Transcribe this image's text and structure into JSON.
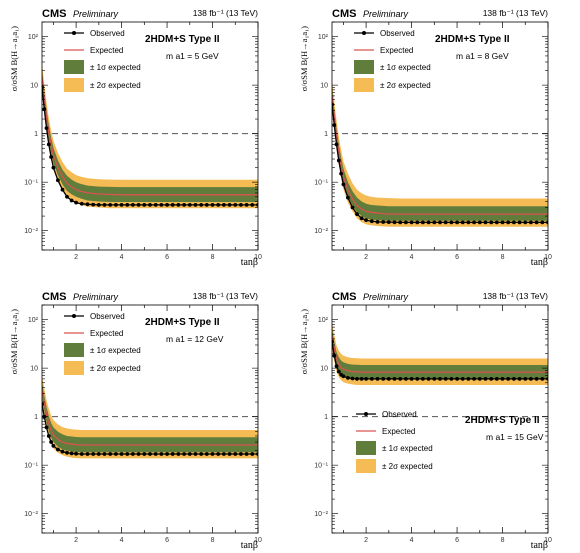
{
  "shared": {
    "cms_label": "CMS",
    "preliminary_label": "Preliminary",
    "lumi_label": "138 fb⁻¹ (13 TeV)",
    "model_label": "2HDM+S Type II",
    "x_label": "tanβ",
    "y_label": "σ/σSM B(H→a₁a₁)",
    "legend": {
      "observed": "Observed",
      "expected": "Expected",
      "one_sigma": "± 1σ expected",
      "two_sigma": "± 2σ expected"
    },
    "x_ticks": [
      "2",
      "4",
      "6",
      "8",
      "10"
    ],
    "y_ticks": [
      "10⁻²",
      "10⁻¹",
      "1",
      "10",
      "10²"
    ],
    "colors": {
      "one_sigma_band": "#607d3b",
      "two_sigma_band": "#f5bb54",
      "expected_line": "#d9534f",
      "observed": "#000000",
      "reference_line": "#555555"
    }
  },
  "chart_data": [
    {
      "type": "line",
      "mass_label": "m a1 = 5 GeV",
      "x": [
        0.5,
        0.6,
        0.7,
        0.8,
        0.9,
        1.0,
        1.2,
        1.4,
        1.6,
        1.8,
        2.0,
        2.2,
        2.5,
        3,
        3.5,
        4,
        5,
        6,
        7,
        8,
        9,
        10
      ],
      "observed": [
        9,
        3.2,
        1.3,
        0.6,
        0.33,
        0.2,
        0.11,
        0.07,
        0.05,
        0.042,
        0.038,
        0.036,
        0.035,
        0.034,
        0.034,
        0.034,
        0.034,
        0.034,
        0.034,
        0.034,
        0.034,
        0.034
      ],
      "expected": [
        14,
        5.2,
        2.2,
        1.05,
        0.58,
        0.36,
        0.2,
        0.13,
        0.095,
        0.08,
        0.07,
        0.065,
        0.06,
        0.057,
        0.056,
        0.055,
        0.055,
        0.055,
        0.055,
        0.055,
        0.055,
        0.055
      ],
      "one_sigma_low": [
        10,
        3.7,
        1.55,
        0.74,
        0.41,
        0.25,
        0.14,
        0.09,
        0.066,
        0.056,
        0.05,
        0.046,
        0.042,
        0.04,
        0.039,
        0.039,
        0.039,
        0.039,
        0.039,
        0.039,
        0.039,
        0.039
      ],
      "one_sigma_high": [
        20,
        7.4,
        3.1,
        1.5,
        0.83,
        0.51,
        0.28,
        0.18,
        0.135,
        0.113,
        0.1,
        0.092,
        0.085,
        0.081,
        0.08,
        0.079,
        0.079,
        0.079,
        0.079,
        0.079,
        0.079,
        0.079
      ],
      "two_sigma_low": [
        7.5,
        2.8,
        1.15,
        0.55,
        0.3,
        0.18,
        0.1,
        0.066,
        0.048,
        0.041,
        0.037,
        0.034,
        0.031,
        0.03,
        0.029,
        0.029,
        0.029,
        0.029,
        0.029,
        0.029,
        0.029,
        0.029
      ],
      "two_sigma_high": [
        28,
        10.5,
        4.4,
        2.1,
        1.17,
        0.72,
        0.4,
        0.26,
        0.19,
        0.16,
        0.14,
        0.13,
        0.12,
        0.115,
        0.113,
        0.112,
        0.112,
        0.112,
        0.112,
        0.112,
        0.112,
        0.112
      ],
      "xlim": [
        0.5,
        10
      ],
      "ylim": [
        0.004,
        200
      ],
      "ylog": true,
      "reference_line_y": 1,
      "legend_position": "top-left"
    },
    {
      "type": "line",
      "mass_label": "m a1 = 8 GeV",
      "x": [
        0.5,
        0.6,
        0.7,
        0.8,
        0.9,
        1.0,
        1.2,
        1.4,
        1.6,
        1.8,
        2.0,
        2.2,
        2.5,
        3,
        3.5,
        4,
        5,
        6,
        7,
        8,
        9,
        10
      ],
      "observed": [
        4,
        1.5,
        0.6,
        0.28,
        0.15,
        0.09,
        0.048,
        0.03,
        0.022,
        0.018,
        0.0165,
        0.0158,
        0.0152,
        0.015,
        0.0148,
        0.0148,
        0.0148,
        0.0148,
        0.0148,
        0.0148,
        0.0148,
        0.0148
      ],
      "expected": [
        6,
        2.2,
        0.9,
        0.42,
        0.22,
        0.13,
        0.07,
        0.045,
        0.033,
        0.028,
        0.025,
        0.024,
        0.023,
        0.022,
        0.022,
        0.022,
        0.022,
        0.022,
        0.022,
        0.022,
        0.022,
        0.022
      ],
      "one_sigma_low": [
        4.4,
        1.6,
        0.65,
        0.31,
        0.16,
        0.095,
        0.051,
        0.033,
        0.024,
        0.02,
        0.018,
        0.017,
        0.0165,
        0.016,
        0.016,
        0.016,
        0.016,
        0.016,
        0.016,
        0.016,
        0.016,
        0.016
      ],
      "one_sigma_high": [
        8.6,
        3.2,
        1.3,
        0.6,
        0.32,
        0.19,
        0.1,
        0.065,
        0.048,
        0.04,
        0.036,
        0.034,
        0.033,
        0.032,
        0.032,
        0.032,
        0.032,
        0.032,
        0.032,
        0.032,
        0.032,
        0.032
      ],
      "two_sigma_low": [
        3.3,
        1.2,
        0.49,
        0.23,
        0.12,
        0.071,
        0.038,
        0.025,
        0.018,
        0.015,
        0.0135,
        0.013,
        0.0125,
        0.012,
        0.012,
        0.012,
        0.012,
        0.012,
        0.012,
        0.012,
        0.012,
        0.012
      ],
      "two_sigma_high": [
        12.5,
        4.6,
        1.9,
        0.88,
        0.46,
        0.27,
        0.15,
        0.095,
        0.07,
        0.059,
        0.053,
        0.05,
        0.048,
        0.047,
        0.046,
        0.046,
        0.046,
        0.046,
        0.046,
        0.046,
        0.046,
        0.046
      ],
      "xlim": [
        0.5,
        10
      ],
      "ylim": [
        0.004,
        200
      ],
      "ylog": true,
      "reference_line_y": 1,
      "legend_position": "top-left"
    },
    {
      "type": "line",
      "mass_label": "m a1 = 12 GeV",
      "x": [
        0.5,
        0.6,
        0.7,
        0.8,
        0.9,
        1.0,
        1.2,
        1.4,
        1.6,
        1.8,
        2.0,
        2.2,
        2.5,
        3,
        3.5,
        4,
        5,
        6,
        7,
        8,
        9,
        10
      ],
      "observed": [
        1.8,
        1.0,
        0.6,
        0.4,
        0.3,
        0.25,
        0.21,
        0.19,
        0.18,
        0.175,
        0.172,
        0.17,
        0.17,
        0.17,
        0.17,
        0.17,
        0.17,
        0.17,
        0.17,
        0.17,
        0.17,
        0.17
      ],
      "expected": [
        3.5,
        1.9,
        1.1,
        0.72,
        0.52,
        0.42,
        0.34,
        0.3,
        0.28,
        0.27,
        0.265,
        0.26,
        0.26,
        0.26,
        0.26,
        0.26,
        0.26,
        0.26,
        0.26,
        0.26,
        0.26,
        0.26
      ],
      "one_sigma_low": [
        2.5,
        1.35,
        0.78,
        0.51,
        0.37,
        0.3,
        0.24,
        0.21,
        0.2,
        0.19,
        0.187,
        0.185,
        0.185,
        0.185,
        0.185,
        0.185,
        0.185,
        0.185,
        0.185,
        0.185,
        0.185,
        0.185
      ],
      "one_sigma_high": [
        5,
        2.7,
        1.57,
        1.03,
        0.74,
        0.6,
        0.49,
        0.43,
        0.4,
        0.39,
        0.38,
        0.375,
        0.375,
        0.375,
        0.375,
        0.375,
        0.375,
        0.375,
        0.375,
        0.375,
        0.375,
        0.375
      ],
      "two_sigma_low": [
        1.9,
        1.0,
        0.58,
        0.38,
        0.27,
        0.22,
        0.18,
        0.16,
        0.15,
        0.143,
        0.14,
        0.138,
        0.138,
        0.138,
        0.138,
        0.138,
        0.138,
        0.138,
        0.138,
        0.138,
        0.138,
        0.138
      ],
      "two_sigma_high": [
        7,
        3.8,
        2.2,
        1.45,
        1.05,
        0.85,
        0.69,
        0.61,
        0.57,
        0.55,
        0.54,
        0.53,
        0.53,
        0.53,
        0.53,
        0.53,
        0.53,
        0.53,
        0.53,
        0.53,
        0.53,
        0.53
      ],
      "xlim": [
        0.5,
        10
      ],
      "ylim": [
        0.004,
        200
      ],
      "ylog": true,
      "reference_line_y": 1,
      "legend_position": "top-left"
    },
    {
      "type": "line",
      "mass_label": "m a1 = 15 GeV",
      "x": [
        0.5,
        0.6,
        0.7,
        0.8,
        0.9,
        1.0,
        1.2,
        1.4,
        1.6,
        1.8,
        2.0,
        2.2,
        2.5,
        3,
        3.5,
        4,
        5,
        6,
        7,
        8,
        9,
        10
      ],
      "observed": [
        35,
        18,
        11,
        8.5,
        7.3,
        6.8,
        6.3,
        6.1,
        6.0,
        6.0,
        6.0,
        6.0,
        6.0,
        6.0,
        6.0,
        6.0,
        6.0,
        6.0,
        6.0,
        6.0,
        6.0,
        6.0
      ],
      "expected": [
        46,
        25,
        15.5,
        12,
        10.3,
        9.5,
        8.8,
        8.5,
        8.4,
        8.3,
        8.3,
        8.3,
        8.3,
        8.3,
        8.3,
        8.3,
        8.3,
        8.3,
        8.3,
        8.3,
        8.3,
        8.3
      ],
      "one_sigma_low": [
        33,
        18,
        11,
        8.6,
        7.4,
        6.8,
        6.3,
        6.1,
        6.0,
        5.95,
        5.95,
        5.95,
        5.95,
        5.95,
        5.95,
        5.95,
        5.95,
        5.95,
        5.95,
        5.95,
        5.95,
        5.95
      ],
      "one_sigma_high": [
        64,
        35,
        21.5,
        16.7,
        14.3,
        13.2,
        12.2,
        11.8,
        11.7,
        11.6,
        11.6,
        11.6,
        11.6,
        11.6,
        11.6,
        11.6,
        11.6,
        11.6,
        11.6,
        11.6,
        11.6,
        11.6
      ],
      "two_sigma_low": [
        25,
        13.5,
        8.4,
        6.5,
        5.6,
        5.1,
        4.8,
        4.6,
        4.5,
        4.5,
        4.5,
        4.5,
        4.5,
        4.5,
        4.5,
        4.5,
        4.5,
        4.5,
        4.5,
        4.5,
        4.5,
        4.5
      ],
      "two_sigma_high": [
        88,
        48,
        29.5,
        22.8,
        19.6,
        18,
        16.7,
        16.2,
        16,
        15.8,
        15.8,
        15.8,
        15.8,
        15.8,
        15.8,
        15.8,
        15.8,
        15.8,
        15.8,
        15.8,
        15.8,
        15.8
      ],
      "xlim": [
        0.5,
        10
      ],
      "ylim": [
        0.004,
        200
      ],
      "ylog": true,
      "reference_line_y": 1,
      "legend_position": "bottom-left"
    }
  ]
}
